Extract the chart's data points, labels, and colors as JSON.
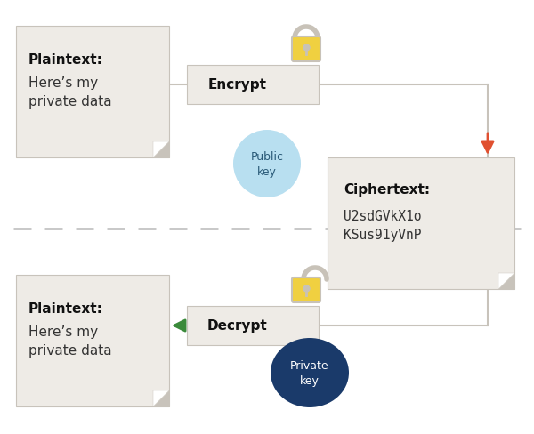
{
  "bg_color": "#ffffff",
  "box_color": "#eeebe6",
  "box_edge_color": "#c8c3bb",
  "yellow_color": "#f0d040",
  "lock_color": "#c8c2b8",
  "public_key_color": "#b8dff0",
  "private_key_color": "#1a3a6a",
  "arrow_down_color": "#e05030",
  "arrow_left_color": "#3a8a3a",
  "dashed_color": "#b8b8b8",
  "plaintext_title": "Plaintext:",
  "plaintext_body": "Here’s my\nprivate data",
  "encrypt_label": "Encrypt",
  "ciphertext_title": "Ciphertext:",
  "ciphertext_body": "U2sdGVkX1o\nKSus91yVnP",
  "decrypt_label": "Decrypt",
  "public_key_label": "Public\nkey",
  "private_key_label": "Private\nkey",
  "figw": 6.0,
  "figh": 4.89
}
